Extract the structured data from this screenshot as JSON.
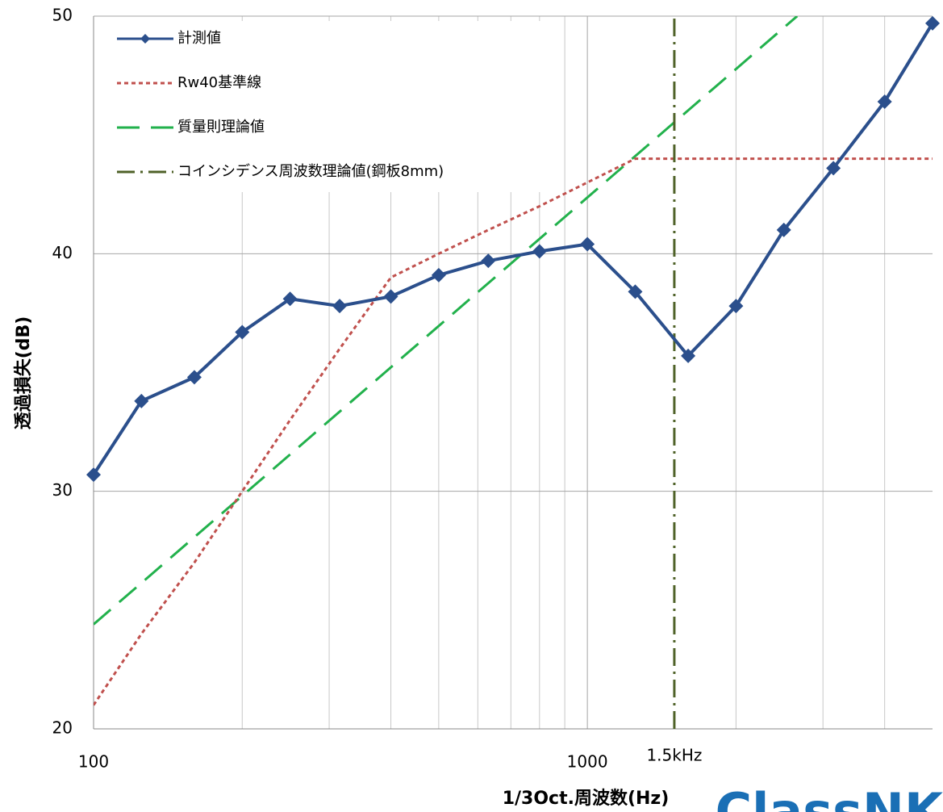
{
  "chart_data": {
    "type": "line",
    "xlabel": "1/3Oct.周波数(Hz)",
    "ylabel": "透過損失(dB)",
    "xscale": "log",
    "xlim": [
      100,
      5000
    ],
    "ylim": [
      20,
      50
    ],
    "xticks": [
      100,
      1000
    ],
    "xminor": [
      200,
      300,
      400,
      500,
      600,
      700,
      800,
      900,
      2000,
      3000,
      4000
    ],
    "yticks": [
      20,
      30,
      40,
      50
    ],
    "grid": true,
    "legend": "upper-left",
    "annotations": [
      {
        "text": "1.5kHz",
        "x": 1500
      }
    ],
    "logo": "ClassNK",
    "series": [
      {
        "name": "計測値",
        "color": "#2b4f8c",
        "style": "solid",
        "marker": "diamond",
        "x": [
          100,
          125,
          160,
          200,
          250,
          315,
          400,
          500,
          630,
          800,
          1000,
          1250,
          1600,
          2000,
          2500,
          3150,
          4000,
          5000
        ],
        "values": [
          30.7,
          33.8,
          34.8,
          36.7,
          38.1,
          37.8,
          38.2,
          39.1,
          39.7,
          40.1,
          40.4,
          38.4,
          35.7,
          37.8,
          41.0,
          43.6,
          46.4,
          49.7
        ]
      },
      {
        "name": "Rw40基準線",
        "color": "#c0504d",
        "style": "dotted",
        "x": [
          100,
          125,
          160,
          200,
          250,
          315,
          400,
          500,
          630,
          800,
          1000,
          1250,
          1600,
          2000,
          2500,
          3150,
          4000,
          5000
        ],
        "values": [
          21,
          24,
          27,
          30,
          33,
          36,
          39,
          40,
          41,
          42,
          43,
          44,
          44,
          44,
          44,
          44,
          44,
          44
        ]
      },
      {
        "name": "質量則理論値",
        "color": "#22b14c",
        "style": "dashed",
        "x": [
          100,
          2660
        ],
        "values": [
          24.4,
          50
        ]
      },
      {
        "name": "コインシデンス周波数理論値(鋼板8mm)",
        "color": "#4f6228",
        "style": "dashdot",
        "x": [
          1500,
          1500
        ],
        "values": [
          20,
          50
        ]
      }
    ]
  }
}
